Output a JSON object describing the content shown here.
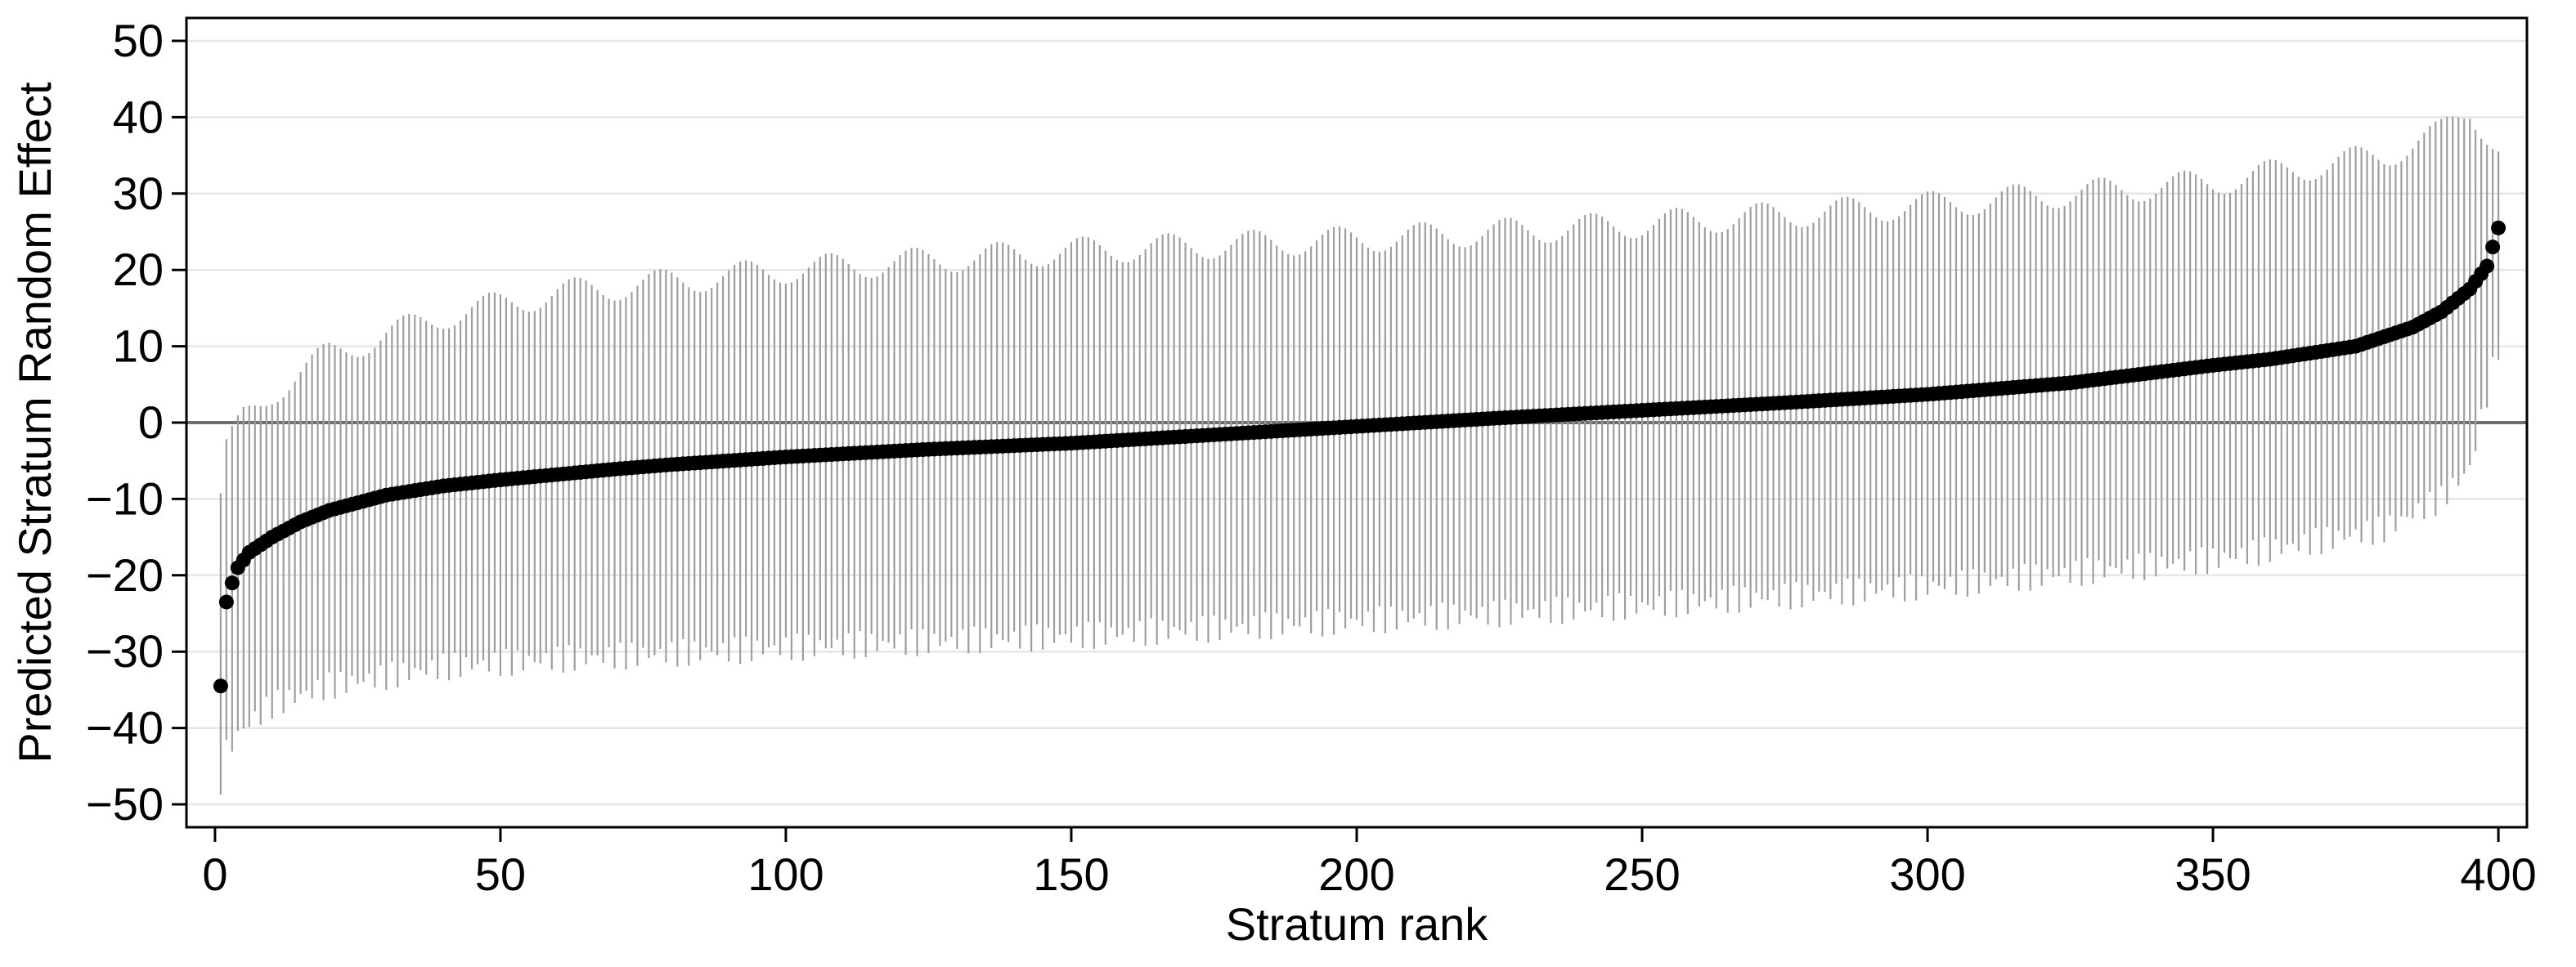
{
  "chart_data": {
    "type": "scatter",
    "title": "",
    "xlabel": "Stratum rank",
    "ylabel": "Predicted Stratum Random Effect",
    "xlim": [
      -5,
      405
    ],
    "ylim": [
      -53,
      53
    ],
    "x_ticks": [
      0,
      50,
      100,
      150,
      200,
      250,
      300,
      350,
      400
    ],
    "y_ticks": [
      50,
      40,
      30,
      20,
      10,
      0,
      -10,
      -20,
      -30,
      -40,
      -50
    ],
    "x_tick_labels": [
      "0",
      "50",
      "100",
      "150",
      "200",
      "250",
      "300",
      "350",
      "400"
    ],
    "y_tick_labels": [
      "50",
      "40",
      "30",
      "20",
      "10",
      "0",
      "−10",
      "−20",
      "−30",
      "−40",
      "−50"
    ],
    "grid": true,
    "reference_line_y": 0,
    "n_strata": 400,
    "point_anchors": [
      [
        1,
        -34.5
      ],
      [
        2,
        -23.5
      ],
      [
        3,
        -21.0
      ],
      [
        4,
        -19.0
      ],
      [
        5,
        -18.0
      ],
      [
        6,
        -17.0
      ],
      [
        8,
        -16.0
      ],
      [
        10,
        -15.0
      ],
      [
        15,
        -13.0
      ],
      [
        20,
        -11.5
      ],
      [
        30,
        -9.5
      ],
      [
        40,
        -8.3
      ],
      [
        50,
        -7.5
      ],
      [
        60,
        -6.8
      ],
      [
        70,
        -6.1
      ],
      [
        80,
        -5.5
      ],
      [
        100,
        -4.5
      ],
      [
        125,
        -3.5
      ],
      [
        150,
        -2.7
      ],
      [
        175,
        -1.6
      ],
      [
        200,
        -0.5
      ],
      [
        225,
        0.6
      ],
      [
        250,
        1.6
      ],
      [
        275,
        2.6
      ],
      [
        300,
        3.7
      ],
      [
        325,
        5.2
      ],
      [
        350,
        7.5
      ],
      [
        360,
        8.3
      ],
      [
        375,
        10.0
      ],
      [
        385,
        12.5
      ],
      [
        390,
        14.5
      ],
      [
        395,
        17.5
      ],
      [
        397,
        19.5
      ],
      [
        398,
        20.5
      ],
      [
        399,
        23.0
      ],
      [
        400,
        25.5
      ]
    ],
    "ci_upper_anchors": [
      [
        1,
        -10.0
      ],
      [
        2,
        -3.5
      ],
      [
        5,
        0.5
      ],
      [
        10,
        4.0
      ],
      [
        20,
        9.0
      ],
      [
        40,
        14.0
      ],
      [
        60,
        17.0
      ],
      [
        100,
        20.0
      ],
      [
        150,
        22.5
      ],
      [
        200,
        24.0
      ],
      [
        250,
        26.0
      ],
      [
        300,
        28.5
      ],
      [
        350,
        31.5
      ],
      [
        380,
        35.0
      ],
      [
        390,
        38.0
      ],
      [
        395,
        41.0
      ],
      [
        400,
        36.0
      ]
    ],
    "ci_lower_anchors": [
      [
        1,
        -47.0
      ],
      [
        2,
        -43.0
      ],
      [
        5,
        -40.0
      ],
      [
        10,
        -37.0
      ],
      [
        20,
        -34.5
      ],
      [
        40,
        -32.0
      ],
      [
        60,
        -31.0
      ],
      [
        100,
        -29.5
      ],
      [
        150,
        -28.0
      ],
      [
        200,
        -26.0
      ],
      [
        250,
        -24.0
      ],
      [
        300,
        -21.5
      ],
      [
        350,
        -18.0
      ],
      [
        380,
        -14.0
      ],
      [
        390,
        -10.0
      ],
      [
        395,
        -6.0
      ],
      [
        400,
        10.0
      ]
    ],
    "ci_jitter": 1.8,
    "colors": {
      "point": "#000000",
      "ci_line": "#9e9e9e",
      "grid": "#e6e6e6",
      "zero_line": "#6e6e6e",
      "axis": "#000000"
    }
  }
}
